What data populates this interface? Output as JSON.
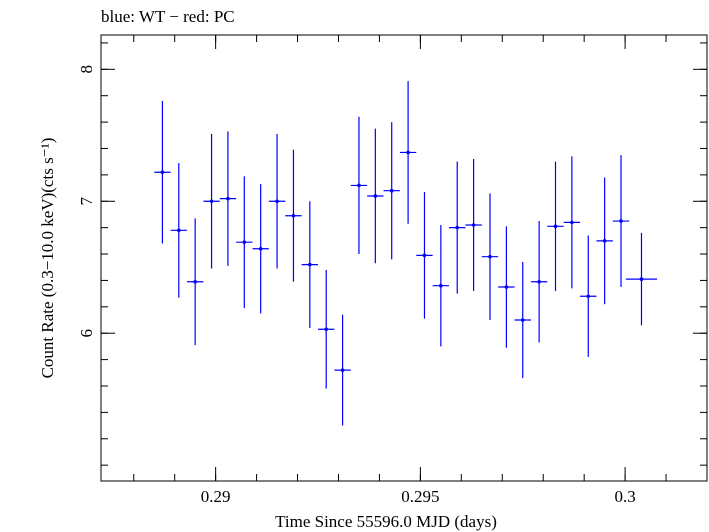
{
  "chart_data": {
    "type": "scatter",
    "title": "blue: WT − red: PC",
    "xlabel": "Time Since 55596.0 MJD (days)",
    "ylabel": "Count Rate (0.3−10.0 keV)(cts s⁻¹)",
    "xlim": [
      0.2872,
      0.302
    ],
    "ylim": [
      4.88,
      8.26
    ],
    "x_ticks": [
      0.29,
      0.295,
      0.3
    ],
    "x_tick_labels": [
      "0.29",
      "0.295",
      "0.3"
    ],
    "y_ticks": [
      6,
      7,
      8
    ],
    "y_tick_labels": [
      "6",
      "7",
      "8"
    ],
    "grid": false,
    "series": [
      {
        "name": "WT",
        "color": "#0000ff",
        "points": [
          {
            "x": 0.2887,
            "xerr": 0.0002,
            "y": 7.22,
            "yerr": 0.54
          },
          {
            "x": 0.2891,
            "xerr": 0.0002,
            "y": 6.78,
            "yerr": 0.51
          },
          {
            "x": 0.2895,
            "xerr": 0.0002,
            "y": 6.39,
            "yerr": 0.48
          },
          {
            "x": 0.2899,
            "xerr": 0.0002,
            "y": 7.0,
            "yerr": 0.51
          },
          {
            "x": 0.2903,
            "xerr": 0.0002,
            "y": 7.02,
            "yerr": 0.51
          },
          {
            "x": 0.2907,
            "xerr": 0.0002,
            "y": 6.69,
            "yerr": 0.5
          },
          {
            "x": 0.2911,
            "xerr": 0.0002,
            "y": 6.64,
            "yerr": 0.49
          },
          {
            "x": 0.2915,
            "xerr": 0.0002,
            "y": 7.0,
            "yerr": 0.51
          },
          {
            "x": 0.2919,
            "xerr": 0.0002,
            "y": 6.89,
            "yerr": 0.5
          },
          {
            "x": 0.2923,
            "xerr": 0.0002,
            "y": 6.52,
            "yerr": 0.48
          },
          {
            "x": 0.2927,
            "xerr": 0.0002,
            "y": 6.03,
            "yerr": 0.45
          },
          {
            "x": 0.2931,
            "xerr": 0.0002,
            "y": 5.72,
            "yerr": 0.42
          },
          {
            "x": 0.2935,
            "xerr": 0.0002,
            "y": 7.12,
            "yerr": 0.52
          },
          {
            "x": 0.2939,
            "xerr": 0.0002,
            "y": 7.04,
            "yerr": 0.51
          },
          {
            "x": 0.2943,
            "xerr": 0.0002,
            "y": 7.08,
            "yerr": 0.52
          },
          {
            "x": 0.2947,
            "xerr": 0.0002,
            "y": 7.37,
            "yerr": 0.54
          },
          {
            "x": 0.2951,
            "xerr": 0.0002,
            "y": 6.59,
            "yerr": 0.48
          },
          {
            "x": 0.2955,
            "xerr": 0.0002,
            "y": 6.36,
            "yerr": 0.46
          },
          {
            "x": 0.2959,
            "xerr": 0.0002,
            "y": 6.8,
            "yerr": 0.5
          },
          {
            "x": 0.2963,
            "xerr": 0.0002,
            "y": 6.82,
            "yerr": 0.5
          },
          {
            "x": 0.2967,
            "xerr": 0.0002,
            "y": 6.58,
            "yerr": 0.48
          },
          {
            "x": 0.2971,
            "xerr": 0.0002,
            "y": 6.35,
            "yerr": 0.46
          },
          {
            "x": 0.2975,
            "xerr": 0.0002,
            "y": 6.1,
            "yerr": 0.44
          },
          {
            "x": 0.2979,
            "xerr": 0.0002,
            "y": 6.39,
            "yerr": 0.46
          },
          {
            "x": 0.2983,
            "xerr": 0.0002,
            "y": 6.81,
            "yerr": 0.49
          },
          {
            "x": 0.2987,
            "xerr": 0.0002,
            "y": 6.84,
            "yerr": 0.5
          },
          {
            "x": 0.2991,
            "xerr": 0.0002,
            "y": 6.28,
            "yerr": 0.46
          },
          {
            "x": 0.2995,
            "xerr": 0.0002,
            "y": 6.7,
            "yerr": 0.48
          },
          {
            "x": 0.2999,
            "xerr": 0.0002,
            "y": 6.85,
            "yerr": 0.5
          },
          {
            "x": 0.3004,
            "xerr": 0.00038,
            "y": 6.41,
            "yerr": 0.35
          }
        ]
      }
    ]
  }
}
